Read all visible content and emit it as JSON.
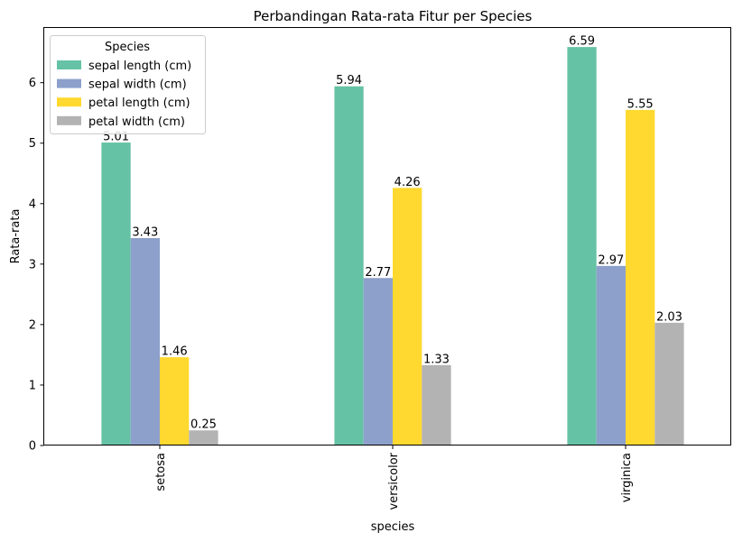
{
  "chart_data": {
    "type": "bar",
    "title": "Perbandingan Rata-rata Fitur per Species",
    "xlabel": "species",
    "ylabel": "Rata-rata",
    "categories": [
      "setosa",
      "versicolor",
      "virginica"
    ],
    "series": [
      {
        "name": "sepal length (cm)",
        "color": "#66c2a5",
        "values": [
          5.01,
          5.94,
          6.59
        ],
        "labels": [
          "5.01",
          "5.94",
          "6.59"
        ]
      },
      {
        "name": "sepal width (cm)",
        "color": "#8da0cb",
        "values": [
          3.43,
          2.77,
          2.97
        ],
        "labels": [
          "3.43",
          "2.77",
          "2.97"
        ]
      },
      {
        "name": "petal length (cm)",
        "color": "#ffd92f",
        "values": [
          1.46,
          4.26,
          5.55
        ],
        "labels": [
          "1.46",
          "4.26",
          "5.55"
        ]
      },
      {
        "name": "petal width (cm)",
        "color": "#b3b3b3",
        "values": [
          0.25,
          1.33,
          2.03
        ],
        "labels": [
          "0.25",
          "1.33",
          "2.03"
        ]
      }
    ],
    "ylim": [
      0,
      6.92
    ],
    "yticks": [
      0,
      1,
      2,
      3,
      4,
      5,
      6
    ],
    "grid": false,
    "legend": {
      "title": "Species",
      "placement": "top-left"
    }
  }
}
